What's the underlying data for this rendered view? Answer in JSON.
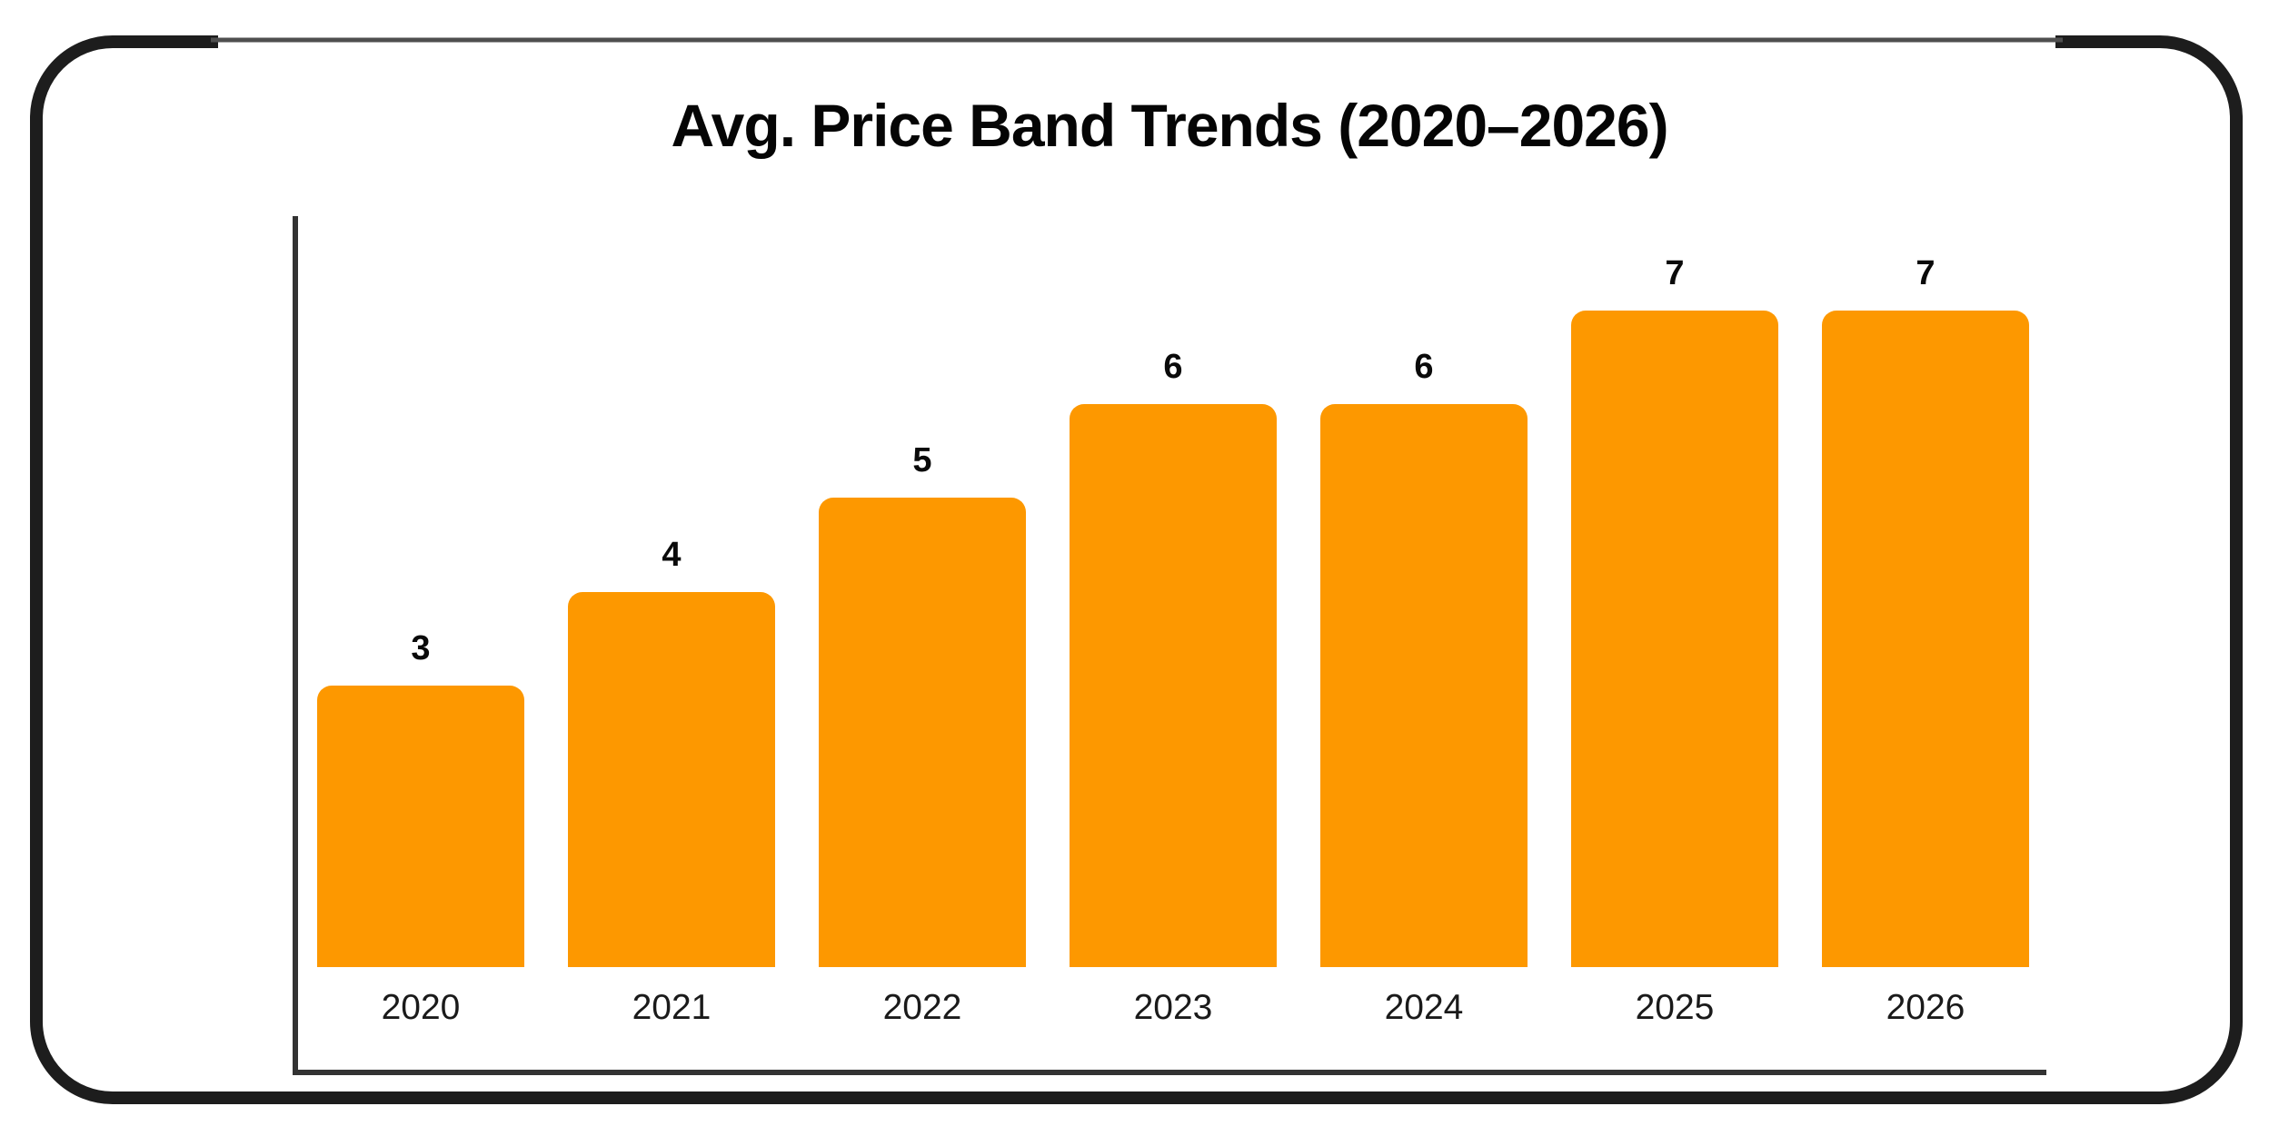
{
  "window": {
    "background_color": "#ffffff",
    "frame_color": "#1d1d1d",
    "frame_top_line_color": "#4f4f4f"
  },
  "chart_data": {
    "type": "bar",
    "title": "Avg. Price Band Trends (2020–2026)",
    "categories": [
      "2020",
      "2021",
      "2022",
      "2023",
      "2024",
      "2025",
      "2026"
    ],
    "values": [
      3,
      4,
      5,
      6,
      6,
      7,
      7
    ],
    "value_labels": [
      "3",
      "4",
      "5",
      "6",
      "6",
      "7",
      "7"
    ],
    "xlabel": "",
    "ylabel": "",
    "ylim": [
      0,
      7
    ],
    "grid": false,
    "legend": "none",
    "spines": [
      "left",
      "bottom"
    ],
    "bar_color": "#fd9800",
    "spine_color": "#333333",
    "value_label_color": "#0a0a0a",
    "tick_label_color": "#1a1a1a",
    "title_color": "#050505"
  }
}
